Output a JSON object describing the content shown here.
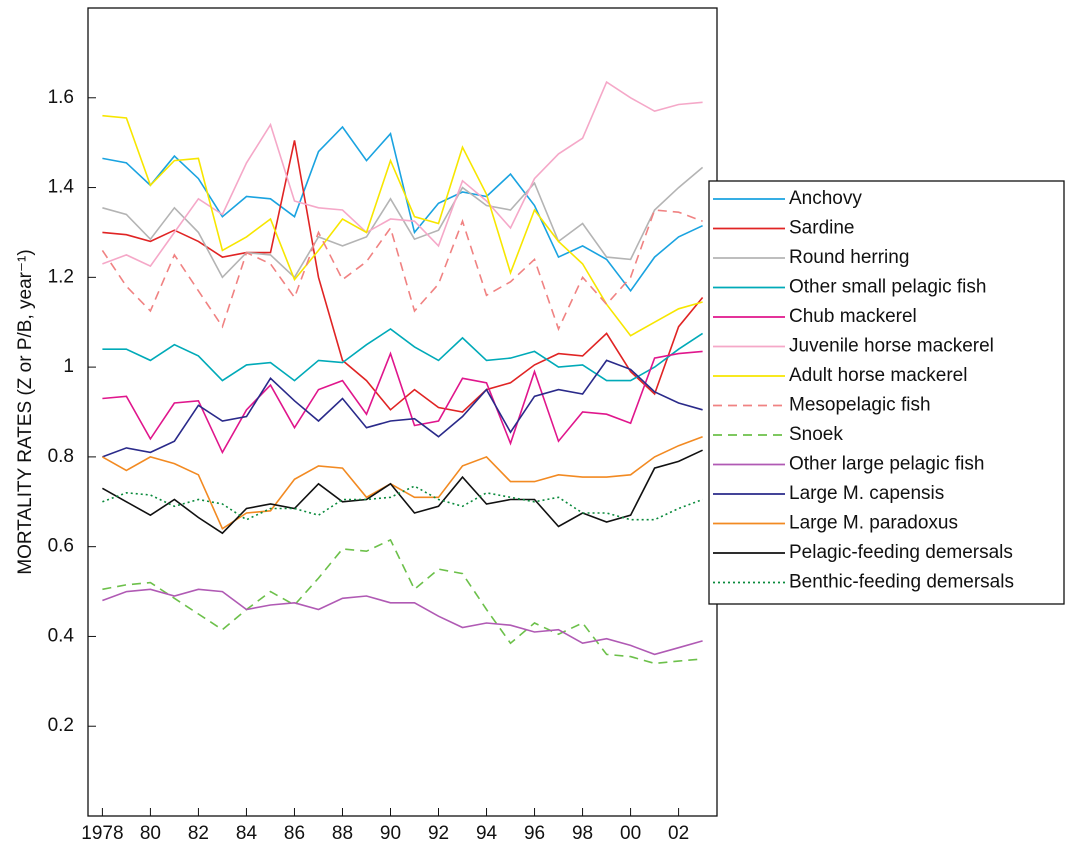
{
  "chart_data": {
    "type": "line",
    "y_label": "MORTALITY RATES (Z or P/B, year⁻¹)",
    "x": [
      1978,
      1979,
      1980,
      1981,
      1982,
      1983,
      1984,
      1985,
      1986,
      1987,
      1988,
      1989,
      1990,
      1991,
      1992,
      1993,
      1994,
      1995,
      1996,
      1997,
      1998,
      1999,
      2000,
      2001,
      2002,
      2003
    ],
    "xlim": [
      1977.4,
      2003.6
    ],
    "xticks": [
      1978,
      {
        "value": 1980,
        "label": "80"
      },
      {
        "value": 1982,
        "label": "82"
      },
      {
        "value": 1984,
        "label": "84"
      },
      {
        "value": 1986,
        "label": "86"
      },
      {
        "value": 1988,
        "label": "88"
      },
      {
        "value": 1990,
        "label": "90"
      },
      {
        "value": 1992,
        "label": "92"
      },
      {
        "value": 1994,
        "label": "94"
      },
      {
        "value": 1996,
        "label": "96"
      },
      {
        "value": 1998,
        "label": "98"
      },
      {
        "value": 2000,
        "label": "00"
      },
      {
        "value": 2002,
        "label": "02"
      }
    ],
    "ylim": [
      0,
      1.8
    ],
    "yticks": [
      0.2,
      0.4,
      0.6,
      0.8,
      1,
      1.2,
      1.4,
      1.6
    ],
    "legend": "right",
    "series": [
      {
        "name": "Anchovy",
        "color": "#1aa3e0",
        "dash": "solid",
        "values": [
          1.465,
          1.455,
          1.405,
          1.47,
          1.42,
          1.335,
          1.38,
          1.375,
          1.335,
          1.48,
          1.535,
          1.46,
          1.52,
          1.3,
          1.365,
          1.39,
          1.38,
          1.43,
          1.36,
          1.245,
          1.27,
          1.24,
          1.17,
          1.245,
          1.29,
          1.315
        ]
      },
      {
        "name": "Sardine",
        "color": "#e02424",
        "dash": "solid",
        "values": [
          1.3,
          1.295,
          1.28,
          1.305,
          1.28,
          1.245,
          1.255,
          1.255,
          1.505,
          1.2,
          1.015,
          0.97,
          0.905,
          0.95,
          0.91,
          0.9,
          0.95,
          0.965,
          1.005,
          1.03,
          1.025,
          1.075,
          0.99,
          0.94,
          1.09,
          1.155
        ]
      },
      {
        "name": "Round herring",
        "color": "#b4b4b4",
        "dash": "solid",
        "values": [
          1.355,
          1.34,
          1.285,
          1.355,
          1.3,
          1.2,
          1.255,
          1.25,
          1.2,
          1.29,
          1.27,
          1.29,
          1.375,
          1.285,
          1.305,
          1.4,
          1.36,
          1.35,
          1.41,
          1.28,
          1.32,
          1.245,
          1.24,
          1.35,
          1.4,
          1.445
        ]
      },
      {
        "name": "Other small pelagic fish",
        "color": "#00aab8",
        "dash": "solid",
        "values": [
          1.04,
          1.04,
          1.015,
          1.05,
          1.025,
          0.97,
          1.005,
          1.01,
          0.97,
          1.015,
          1.01,
          1.05,
          1.085,
          1.045,
          1.015,
          1.065,
          1.015,
          1.02,
          1.035,
          1.0,
          1.005,
          0.97,
          0.97,
          1.0,
          1.04,
          1.075
        ]
      },
      {
        "name": "Chub mackerel",
        "color": "#e0168c",
        "dash": "solid",
        "values": [
          0.93,
          0.935,
          0.84,
          0.92,
          0.925,
          0.81,
          0.905,
          0.96,
          0.865,
          0.95,
          0.97,
          0.895,
          1.03,
          0.87,
          0.88,
          0.975,
          0.965,
          0.83,
          0.99,
          0.835,
          0.9,
          0.895,
          0.875,
          1.02,
          1.03,
          1.035
        ]
      },
      {
        "name": "Juvenile horse mackerel",
        "color": "#f5a8c8",
        "dash": "solid",
        "values": [
          1.23,
          1.25,
          1.225,
          1.3,
          1.375,
          1.34,
          1.455,
          1.54,
          1.37,
          1.355,
          1.35,
          1.3,
          1.33,
          1.325,
          1.27,
          1.415,
          1.37,
          1.31,
          1.42,
          1.475,
          1.51,
          1.635,
          1.6,
          1.57,
          1.585,
          1.59
        ]
      },
      {
        "name": "Adult horse mackerel",
        "color": "#f7e600",
        "dash": "solid",
        "values": [
          1.56,
          1.555,
          1.405,
          1.46,
          1.465,
          1.26,
          1.29,
          1.33,
          1.195,
          1.26,
          1.33,
          1.3,
          1.46,
          1.335,
          1.32,
          1.49,
          1.385,
          1.21,
          1.35,
          1.28,
          1.23,
          1.14,
          1.07,
          1.1,
          1.13,
          1.145
        ]
      },
      {
        "name": "Mesopelagic fish",
        "color": "#f08282",
        "dash": "dashed",
        "values": [
          1.26,
          1.18,
          1.125,
          1.25,
          1.17,
          1.09,
          1.255,
          1.23,
          1.155,
          1.3,
          1.195,
          1.235,
          1.31,
          1.125,
          1.185,
          1.325,
          1.16,
          1.19,
          1.24,
          1.085,
          1.2,
          1.14,
          1.2,
          1.35,
          1.345,
          1.325
        ]
      },
      {
        "name": "Snoek",
        "color": "#6cc04a",
        "dash": "dashed",
        "values": [
          0.505,
          0.515,
          0.52,
          0.485,
          0.45,
          0.415,
          0.46,
          0.5,
          0.47,
          0.53,
          0.595,
          0.59,
          0.615,
          0.505,
          0.55,
          0.54,
          0.46,
          0.385,
          0.43,
          0.405,
          0.43,
          0.36,
          0.355,
          0.34,
          0.345,
          0.35
        ]
      },
      {
        "name": "Other large pelagic fish",
        "color": "#b05ab4",
        "dash": "solid",
        "values": [
          0.48,
          0.5,
          0.505,
          0.49,
          0.505,
          0.5,
          0.46,
          0.47,
          0.475,
          0.46,
          0.485,
          0.49,
          0.475,
          0.475,
          0.445,
          0.42,
          0.43,
          0.425,
          0.41,
          0.415,
          0.385,
          0.395,
          0.38,
          0.36,
          0.375,
          0.39
        ]
      },
      {
        "name": "Large M. capensis",
        "color": "#2a2a8a",
        "dash": "solid",
        "values": [
          0.8,
          0.82,
          0.81,
          0.835,
          0.915,
          0.88,
          0.89,
          0.975,
          0.925,
          0.88,
          0.93,
          0.865,
          0.88,
          0.885,
          0.845,
          0.89,
          0.95,
          0.855,
          0.935,
          0.95,
          0.94,
          1.015,
          0.995,
          0.945,
          0.92,
          0.905
        ]
      },
      {
        "name": "Large M. paradoxus",
        "color": "#f28a22",
        "dash": "solid",
        "values": [
          0.8,
          0.77,
          0.8,
          0.785,
          0.76,
          0.64,
          0.675,
          0.68,
          0.75,
          0.78,
          0.775,
          0.71,
          0.74,
          0.71,
          0.71,
          0.78,
          0.8,
          0.745,
          0.745,
          0.76,
          0.755,
          0.755,
          0.76,
          0.8,
          0.825,
          0.845
        ]
      },
      {
        "name": "Pelagic-feeding demersals",
        "color": "#111111",
        "dash": "solid",
        "values": [
          0.73,
          0.7,
          0.67,
          0.705,
          0.665,
          0.63,
          0.685,
          0.695,
          0.685,
          0.74,
          0.7,
          0.705,
          0.74,
          0.675,
          0.69,
          0.755,
          0.695,
          0.705,
          0.705,
          0.645,
          0.675,
          0.655,
          0.67,
          0.775,
          0.79,
          0.815
        ]
      },
      {
        "name": "Benthic-feeding demersals",
        "color": "#0a8a3c",
        "dash": "dotted",
        "values": [
          0.7,
          0.72,
          0.715,
          0.69,
          0.705,
          0.695,
          0.66,
          0.685,
          0.685,
          0.67,
          0.705,
          0.705,
          0.71,
          0.735,
          0.705,
          0.69,
          0.72,
          0.71,
          0.7,
          0.71,
          0.675,
          0.675,
          0.66,
          0.66,
          0.685,
          0.705
        ]
      }
    ]
  }
}
